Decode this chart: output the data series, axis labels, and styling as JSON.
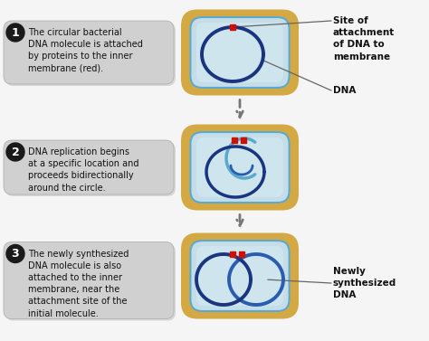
{
  "bg_color": "#f5f5f5",
  "cell_outer_color": "#d4a843",
  "cell_inner_color": "#c5dde8",
  "cell_inner_light": "#daedf5",
  "dna_dark_blue": "#1a3580",
  "dna_medium_blue": "#2a5db0",
  "dna_light_blue": "#5aaad0",
  "red_dot_color": "#cc1100",
  "arrow_color": "#777777",
  "text_box_bg": "#d0d0d0",
  "text_box_edge": "#aaaaaa",
  "step_circle_color": "#1a1a1a",
  "step_text_color": "#ffffff",
  "label_color": "#111111",
  "line_color": "#666666",
  "steps": [
    "The circular bacterial\nDNA molecule is attached\nby proteins to the inner\nmembrane (red).",
    "DNA replication begins\nat a specific location and\nproceeds bidirectionally\naround the circle.",
    "The newly synthesized\nDNA molecule is also\nattached to the inner\nmembrane, near the\nattachment site of the\ninitial molecule."
  ],
  "right_labels_top": "Site of\nattachment\nof DNA to\nmembrane",
  "right_label_dna": "DNA",
  "right_label_bottom": "Newly\nsynthesized\nDNA",
  "fig_w": 4.74,
  "fig_h": 3.77,
  "dpi": 100
}
